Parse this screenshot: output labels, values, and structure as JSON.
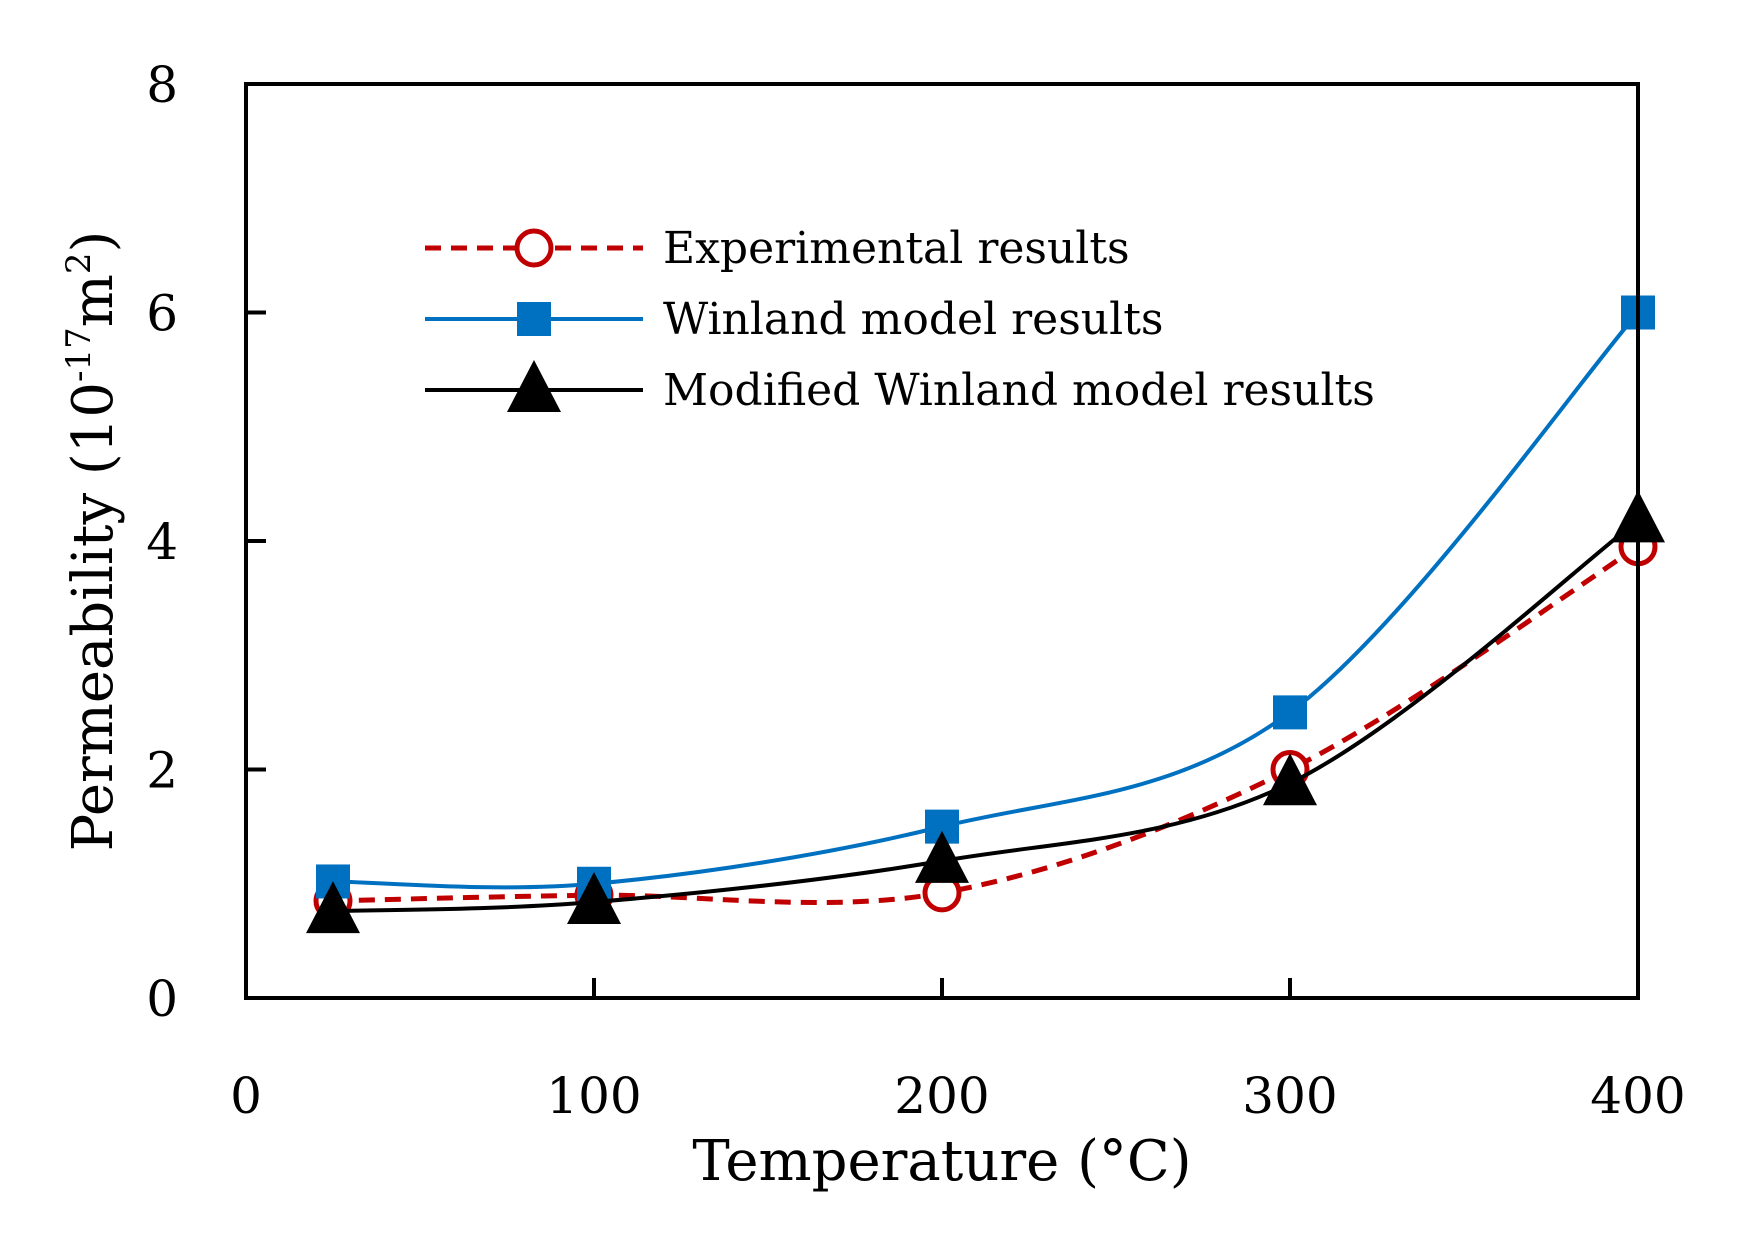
{
  "chart_data": {
    "type": "line",
    "title": "",
    "xlabel": "Temperature (°C)",
    "ylabel": "Permeability (10",
    "ylabel_sup": "-17",
    "ylabel_unit": "m",
    "ylabel_unit_sup": "2",
    "ylabel_close": ")",
    "xlim": [
      0,
      400
    ],
    "ylim": [
      0,
      8
    ],
    "xticks": [
      0,
      100,
      200,
      300,
      400
    ],
    "yticks": [
      0,
      2,
      4,
      6,
      8
    ],
    "xtick_labels": [
      "0",
      "100",
      "200",
      "300",
      "400"
    ],
    "ytick_labels": [
      "0",
      "2",
      "4",
      "6",
      "8"
    ],
    "legend_position": "upper-left",
    "series": [
      {
        "name": "Experimental results",
        "x": [
          25,
          100,
          200,
          300,
          400
        ],
        "y": [
          0.85,
          0.9,
          0.92,
          2.0,
          3.95
        ],
        "color": "#c00000",
        "line_style": "dashed",
        "marker": "open-circle"
      },
      {
        "name": "Winland model results",
        "x": [
          25,
          100,
          200,
          300,
          400
        ],
        "y": [
          1.02,
          1.0,
          1.5,
          2.5,
          6.0
        ],
        "color": "#0070c0",
        "line_style": "solid",
        "marker": "filled-square"
      },
      {
        "name": "Modified Winland model results",
        "x": [
          25,
          100,
          200,
          300,
          400
        ],
        "y": [
          0.76,
          0.84,
          1.2,
          1.88,
          4.18
        ],
        "color": "#000000",
        "line_style": "solid",
        "marker": "filled-triangle"
      }
    ]
  }
}
